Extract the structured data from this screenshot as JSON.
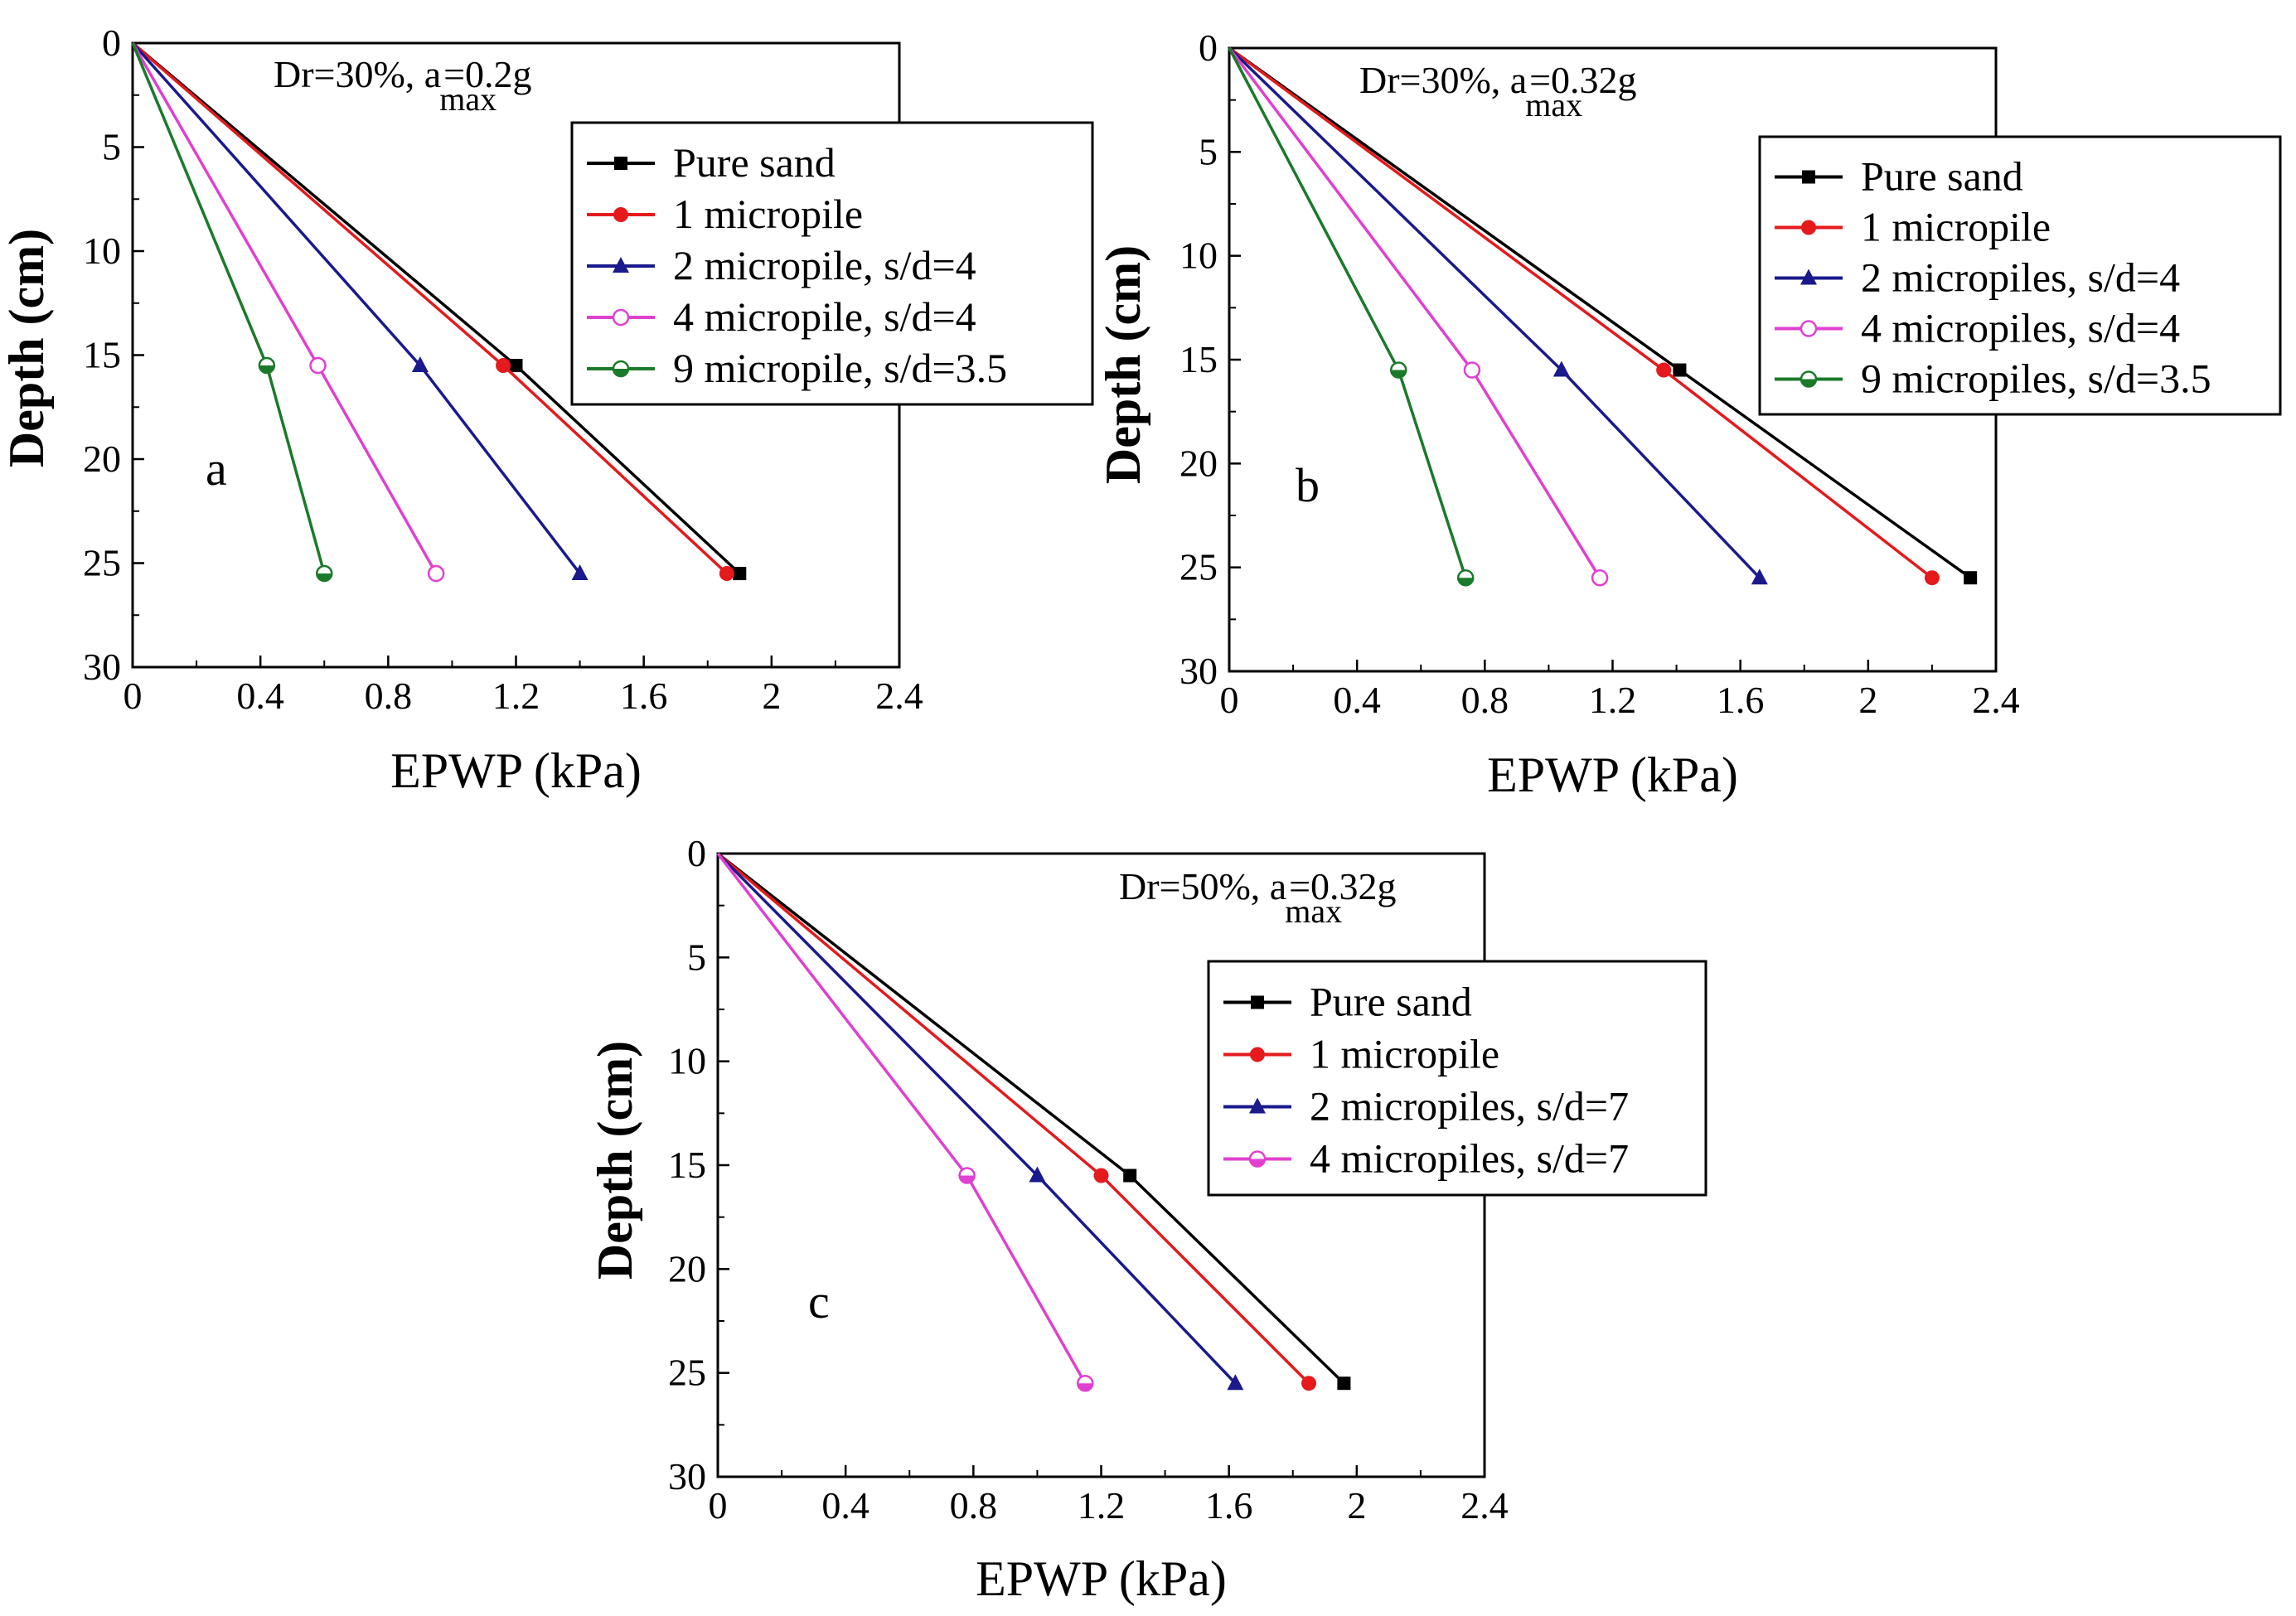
{
  "chart_data": [
    {
      "type": "line",
      "panel_label": "a",
      "annotation": {
        "prefix": "Dr=30%, a",
        "subscript": "max",
        "suffix": "=0.2g"
      },
      "xlabel": "EPWP (kPa)",
      "ylabel": "Depth (cm)",
      "xlim": [
        0,
        2.4
      ],
      "ylim": [
        0,
        30
      ],
      "y_inverted": true,
      "xticks": [
        "0",
        "0.4",
        "0.8",
        "1.2",
        "1.6",
        "2",
        "2.4"
      ],
      "yticks": [
        "0",
        "5",
        "10",
        "15",
        "20",
        "25",
        "30"
      ],
      "legend_position": "top-right",
      "series": [
        {
          "name": "Pure sand",
          "color": "#000000",
          "marker": "square-filled",
          "points": [
            [
              0,
              0
            ],
            [
              1.2,
              15.5
            ],
            [
              1.9,
              25.5
            ]
          ]
        },
        {
          "name": "1 micropile",
          "color": "#e41a1c",
          "marker": "circle-filled",
          "points": [
            [
              0,
              0
            ],
            [
              1.16,
              15.5
            ],
            [
              1.86,
              25.5
            ]
          ]
        },
        {
          "name": "2 micropile, s/d=4",
          "color": "#1a1a8c",
          "marker": "triangle-filled",
          "points": [
            [
              0,
              0
            ],
            [
              0.9,
              15.5
            ],
            [
              1.4,
              25.5
            ]
          ]
        },
        {
          "name": "4 micropile, s/d=4",
          "color": "#e040d0",
          "marker": "circle-open",
          "points": [
            [
              0,
              0
            ],
            [
              0.58,
              15.5
            ],
            [
              0.95,
              25.5
            ]
          ]
        },
        {
          "name": "9 micropile, s/d=3.5",
          "color": "#1a7a2a",
          "marker": "circle-half",
          "points": [
            [
              0,
              0
            ],
            [
              0.42,
              15.5
            ],
            [
              0.6,
              25.5
            ]
          ]
        }
      ]
    },
    {
      "type": "line",
      "panel_label": "b",
      "annotation": {
        "prefix": "Dr=30%, a",
        "subscript": "max",
        "suffix": "=0.32g"
      },
      "xlabel": "EPWP (kPa)",
      "ylabel": "Depth (cm)",
      "xlim": [
        0,
        2.4
      ],
      "ylim": [
        0,
        30
      ],
      "y_inverted": true,
      "xticks": [
        "0",
        "0.4",
        "0.8",
        "1.2",
        "1.6",
        "2",
        "2.4"
      ],
      "yticks": [
        "0",
        "5",
        "10",
        "15",
        "20",
        "25",
        "30"
      ],
      "legend_position": "top-right",
      "series": [
        {
          "name": "Pure sand",
          "color": "#000000",
          "marker": "square-filled",
          "points": [
            [
              0,
              0
            ],
            [
              1.41,
              15.5
            ],
            [
              2.32,
              25.5
            ]
          ]
        },
        {
          "name": "1 micropile",
          "color": "#e41a1c",
          "marker": "circle-filled",
          "points": [
            [
              0,
              0
            ],
            [
              1.36,
              15.5
            ],
            [
              2.2,
              25.5
            ]
          ]
        },
        {
          "name": "2 micropiles, s/d=4",
          "color": "#1a1a8c",
          "marker": "triangle-filled",
          "points": [
            [
              0,
              0
            ],
            [
              1.04,
              15.5
            ],
            [
              1.66,
              25.5
            ]
          ]
        },
        {
          "name": "4 micropiles, s/d=4",
          "color": "#e040d0",
          "marker": "circle-open",
          "points": [
            [
              0,
              0
            ],
            [
              0.76,
              15.5
            ],
            [
              1.16,
              25.5
            ]
          ]
        },
        {
          "name": "9 micropiles, s/d=3.5",
          "color": "#1a7a2a",
          "marker": "circle-half",
          "points": [
            [
              0,
              0
            ],
            [
              0.53,
              15.5
            ],
            [
              0.74,
              25.5
            ]
          ]
        }
      ]
    },
    {
      "type": "line",
      "panel_label": "c",
      "annotation": {
        "prefix": "Dr=50%, a",
        "subscript": "max",
        "suffix": "=0.32g"
      },
      "xlabel": "EPWP (kPa)",
      "ylabel": "Depth (cm)",
      "xlim": [
        0,
        2.4
      ],
      "ylim": [
        0,
        30
      ],
      "y_inverted": true,
      "xticks": [
        "0",
        "0.4",
        "0.8",
        "1.2",
        "1.6",
        "2",
        "2.4"
      ],
      "yticks": [
        "0",
        "5",
        "10",
        "15",
        "20",
        "25",
        "30"
      ],
      "legend_position": "top-right",
      "series": [
        {
          "name": "Pure sand",
          "color": "#000000",
          "marker": "square-filled",
          "points": [
            [
              0,
              0
            ],
            [
              1.29,
              15.5
            ],
            [
              1.96,
              25.5
            ]
          ]
        },
        {
          "name": "1 micropile",
          "color": "#e41a1c",
          "marker": "circle-filled",
          "points": [
            [
              0,
              0
            ],
            [
              1.2,
              15.5
            ],
            [
              1.85,
              25.5
            ]
          ]
        },
        {
          "name": "2 micropiles, s/d=7",
          "color": "#1a1a8c",
          "marker": "triangle-filled",
          "points": [
            [
              0,
              0
            ],
            [
              1.0,
              15.5
            ],
            [
              1.62,
              25.5
            ]
          ]
        },
        {
          "name": "4 micropiles, s/d=7",
          "color": "#e040d0",
          "marker": "circle-half",
          "points": [
            [
              0,
              0
            ],
            [
              0.78,
              15.5
            ],
            [
              1.15,
              25.5
            ]
          ]
        }
      ]
    }
  ]
}
